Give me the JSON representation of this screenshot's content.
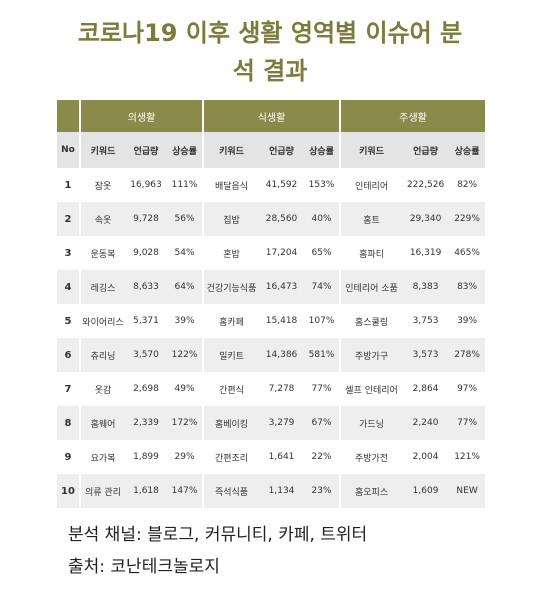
{
  "title": "코로나19 이후 생활 영역별 이슈어 분석 결과",
  "table": {
    "groups": [
      "의생활",
      "식생활",
      "주생활"
    ],
    "columns": [
      "No",
      "키워드",
      "언급량",
      "상승률",
      "키워드",
      "언급량",
      "상승률",
      "키워드",
      "언급량",
      "상승률"
    ],
    "rows": [
      [
        "1",
        "잠옷",
        "16,963",
        "111%",
        "배달음식",
        "41,592",
        "153%",
        "인테리어",
        "222,526",
        "82%"
      ],
      [
        "2",
        "속옷",
        "9,728",
        "56%",
        "집밥",
        "28,560",
        "40%",
        "홈트",
        "29,340",
        "229%"
      ],
      [
        "3",
        "운동복",
        "9,028",
        "54%",
        "혼밥",
        "17,204",
        "65%",
        "홈파티",
        "16,319",
        "465%"
      ],
      [
        "4",
        "레깅스",
        "8,633",
        "64%",
        "건강기능식품",
        "16,473",
        "74%",
        "인테리어 소품",
        "8,383",
        "83%"
      ],
      [
        "5",
        "와이어리스",
        "5,371",
        "39%",
        "홈카페",
        "15,418",
        "107%",
        "홈스쿨링",
        "3,753",
        "39%"
      ],
      [
        "6",
        "츄리닝",
        "3,570",
        "122%",
        "밀키트",
        "14,386",
        "581%",
        "주방가구",
        "3,573",
        "278%"
      ],
      [
        "7",
        "옷감",
        "2,698",
        "49%",
        "간편식",
        "7,278",
        "77%",
        "셀프 인테리어",
        "2,864",
        "97%"
      ],
      [
        "8",
        "홈웨어",
        "2,339",
        "172%",
        "홈베이킹",
        "3,279",
        "67%",
        "가드닝",
        "2,240",
        "77%"
      ],
      [
        "9",
        "요가복",
        "1,899",
        "29%",
        "간편조리",
        "1,641",
        "22%",
        "주방가전",
        "2,004",
        "121%"
      ],
      [
        "10",
        "의류 관리",
        "1,618",
        "147%",
        "즉석식품",
        "1,134",
        "23%",
        "홈오피스",
        "1,609",
        "NEW"
      ]
    ]
  },
  "footer": [
    "분석 채널: 블로그, 커뮤니티, 카페, 트위터",
    "출처: 코난테크놀로지"
  ]
}
